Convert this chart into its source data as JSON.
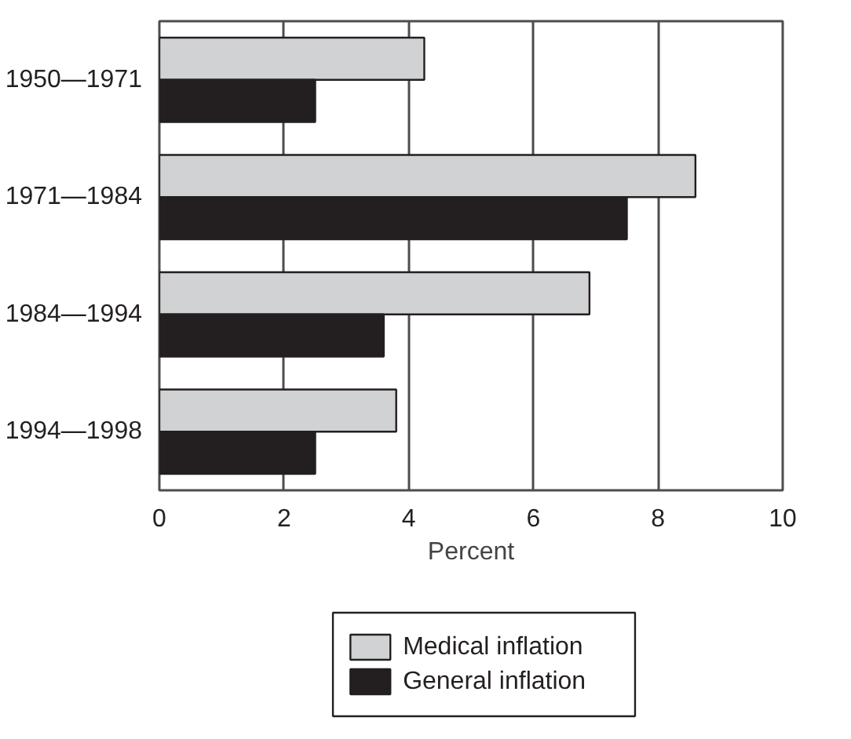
{
  "chart_data": {
    "type": "bar",
    "orientation": "horizontal",
    "categories": [
      "1950—1971",
      "1971—1984",
      "1984—1994",
      "1994—1998"
    ],
    "xlabel": "Percent",
    "xlim": [
      0,
      10
    ],
    "xticks": [
      0,
      2,
      4,
      6,
      8,
      10
    ],
    "grid": "x",
    "legend": "bottom",
    "series": [
      {
        "name": "Medical inflation",
        "color": "#d1d2d4",
        "values": [
          4.25,
          8.6,
          6.9,
          3.8
        ]
      },
      {
        "name": "General inflation",
        "color": "#231f20",
        "values": [
          2.5,
          7.5,
          3.6,
          2.5
        ]
      }
    ]
  }
}
